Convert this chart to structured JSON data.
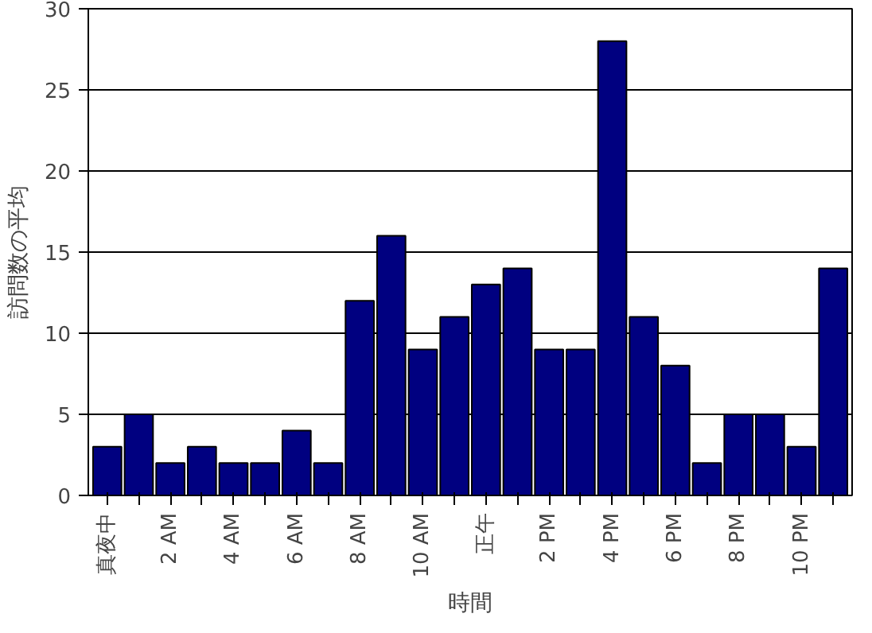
{
  "chart_data": {
    "type": "bar",
    "xlabel": "時間",
    "ylabel": "訪問数の平均",
    "categories": [
      "真夜中",
      null,
      "2 AM",
      null,
      "4 AM",
      null,
      "6 AM",
      null,
      "8 AM",
      null,
      "10 AM",
      null,
      "正午",
      null,
      "2 PM",
      null,
      "4 PM",
      null,
      "6 PM",
      null,
      "8 PM",
      null,
      "10 PM",
      null
    ],
    "values": [
      3,
      5,
      2,
      3,
      2,
      2,
      4,
      2,
      12,
      16,
      9,
      11,
      13,
      14,
      9,
      9,
      28,
      11,
      8,
      2,
      5,
      5,
      3,
      14
    ],
    "color": "#000080",
    "ylim": [
      0,
      30
    ],
    "yticks": [
      0,
      5,
      10,
      15,
      20,
      25,
      30
    ],
    "grid": "y"
  }
}
